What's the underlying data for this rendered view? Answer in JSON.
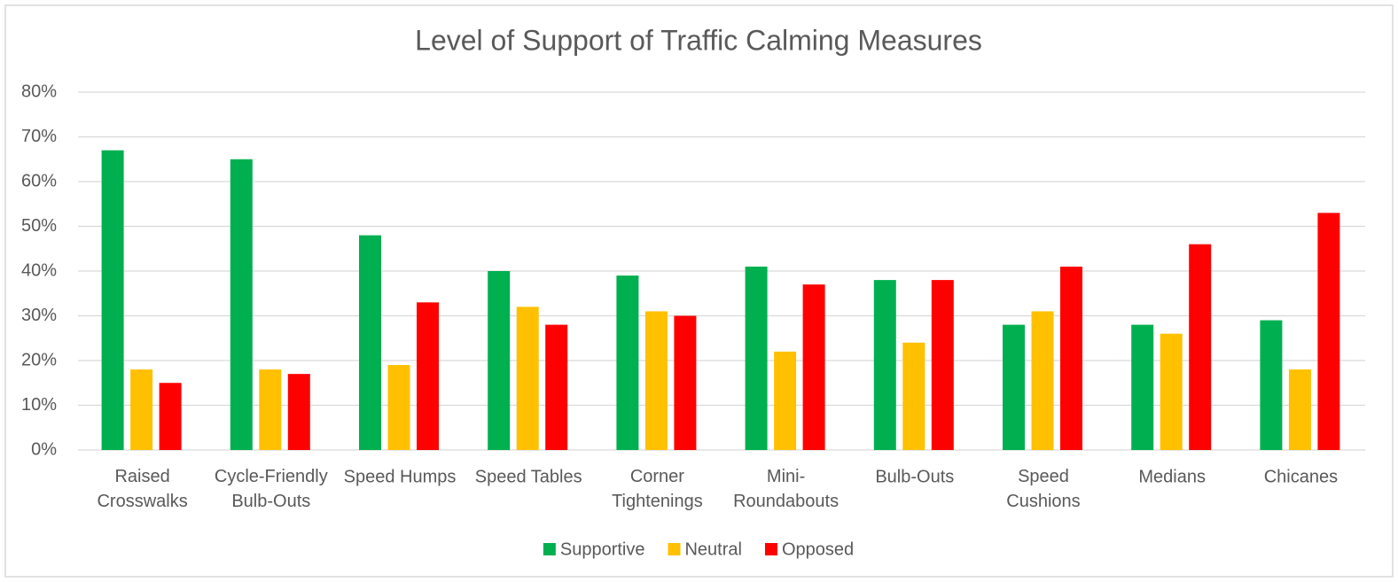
{
  "chart_data": {
    "type": "bar",
    "title": "Level of Support of Traffic Calming Measures",
    "categories": [
      "Raised\nCrosswalks",
      "Cycle-Friendly\nBulb-Outs",
      "Speed Humps",
      "Speed Tables",
      "Corner\nTightenings",
      "Mini-\nRoundabouts",
      "Bulb-Outs",
      "Speed\nCushions",
      "Medians",
      "Chicanes"
    ],
    "series": [
      {
        "name": "Supportive",
        "color": "#00b050",
        "values": [
          67,
          65,
          48,
          40,
          39,
          41,
          38,
          28,
          28,
          29
        ]
      },
      {
        "name": "Neutral",
        "color": "#ffc000",
        "values": [
          18,
          18,
          19,
          32,
          31,
          22,
          24,
          31,
          26,
          18
        ]
      },
      {
        "name": "Opposed",
        "color": "#ff0000",
        "values": [
          15,
          17,
          33,
          28,
          30,
          37,
          38,
          41,
          46,
          53
        ]
      }
    ],
    "ylim": [
      0,
      80
    ],
    "yticks": [
      {
        "value": 0,
        "label": "0%"
      },
      {
        "value": 10,
        "label": "10%"
      },
      {
        "value": 20,
        "label": "20%"
      },
      {
        "value": 30,
        "label": "30%"
      },
      {
        "value": 40,
        "label": "40%"
      },
      {
        "value": 50,
        "label": "50%"
      },
      {
        "value": 60,
        "label": "60%"
      },
      {
        "value": 70,
        "label": "70%"
      },
      {
        "value": 80,
        "label": "80%"
      }
    ],
    "grid": true,
    "legend": "bottom"
  }
}
